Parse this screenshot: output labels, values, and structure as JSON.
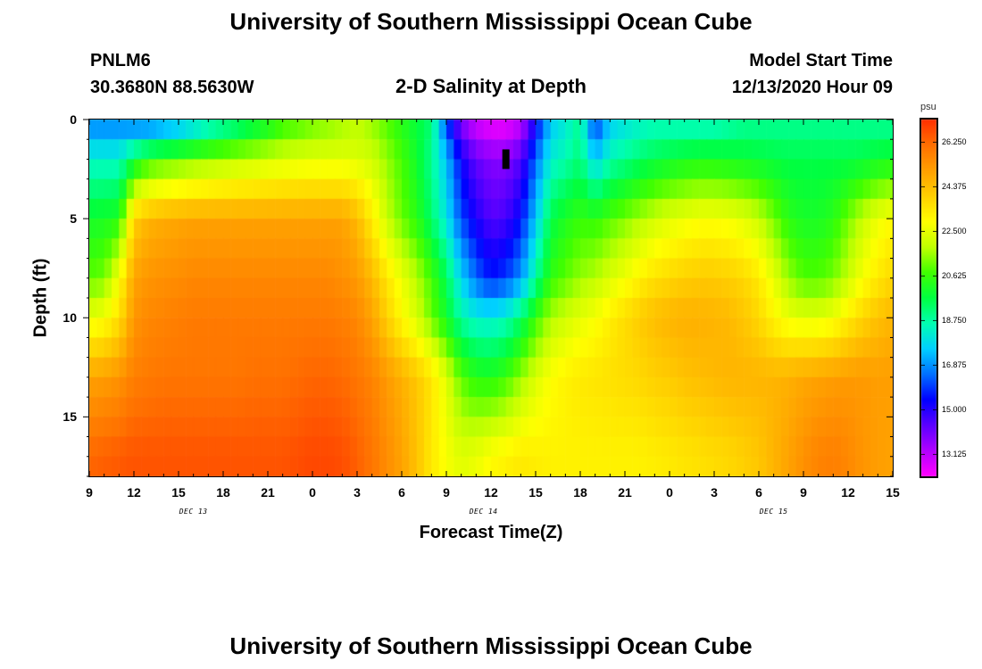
{
  "header": {
    "title": "University of Southern Mississippi Ocean Cube",
    "station": "PNLM6",
    "location": "30.3680N 88.5630W",
    "plot_title": "2-D Salinity at Depth",
    "model_start_label": "Model Start Time",
    "model_start_value": "12/13/2020 Hour 09"
  },
  "footer": {
    "title": "University of Southern Mississippi Ocean Cube"
  },
  "chart_data": {
    "type": "heatmap",
    "title": "2-D Salinity at Depth",
    "xlabel": "Forecast Time(Z)",
    "ylabel": "Depth (ft)",
    "x_ticks": [
      "9",
      "12",
      "15",
      "18",
      "21",
      "0",
      "3",
      "6",
      "9",
      "12",
      "15",
      "18",
      "21",
      "0",
      "3",
      "6",
      "9",
      "12",
      "15"
    ],
    "x_tick_hours": [
      0,
      3,
      6,
      9,
      12,
      15,
      18,
      21,
      24,
      27,
      30,
      33,
      36,
      39,
      42,
      45,
      48,
      51,
      54
    ],
    "x_date_labels": [
      {
        "label": "DEC 13",
        "hour": 7
      },
      {
        "label": "DEC 14",
        "hour": 26.5
      },
      {
        "label": "DEC 15",
        "hour": 46
      }
    ],
    "xlim_hours": [
      0,
      54
    ],
    "y_ticks": [
      0,
      5,
      10,
      15
    ],
    "ylim": [
      0,
      18
    ],
    "y_inverted": true,
    "colorbar": {
      "unit": "psu",
      "ticks": [
        "26.250",
        "24.375",
        "22.500",
        "20.625",
        "18.750",
        "16.875",
        "15.000",
        "13.125"
      ],
      "tick_values": [
        26.25,
        24.375,
        22.5,
        20.625,
        18.75,
        16.875,
        15.0,
        13.125
      ],
      "vmin": 12.2,
      "vmax": 27.2,
      "colors": [
        "#ff00ff",
        "#b000ff",
        "#5a00ff",
        "#0000ff",
        "#0070ff",
        "#00d0ff",
        "#00ffb0",
        "#00ff40",
        "#40ff00",
        "#c0ff00",
        "#ffff00",
        "#ffd000",
        "#ffa000",
        "#ff7000",
        "#ff3000"
      ]
    },
    "values_hourly": {
      "depths_ft": [
        0.4,
        2,
        5,
        8,
        10,
        13,
        17
      ],
      "rows": [
        [
          16.9,
          16.9,
          16.9,
          16.9,
          16.9,
          17.2,
          17.5,
          18.0,
          18.5,
          18.9,
          19.3,
          19.8,
          20.2,
          20.8,
          21.0,
          21.3,
          21.5,
          21.7,
          21.9,
          21.6,
          21.0,
          20.4,
          19.8,
          19.2,
          16.2,
          14.0,
          13.0,
          12.6,
          12.6,
          13.2,
          15.4,
          17.6,
          18.2,
          19.0,
          16.0,
          17.7,
          18.1,
          18.4,
          18.6,
          18.6,
          18.6,
          18.6,
          18.6,
          18.8,
          19.0,
          19.0,
          19.0,
          19.0,
          19.0,
          19.0,
          19.0,
          19.0,
          19.0,
          19.0,
          19.0
        ],
        [
          18.3,
          18.3,
          18.3,
          19.6,
          20.5,
          20.8,
          21.0,
          21.2,
          21.4,
          21.6,
          21.8,
          21.9,
          22.1,
          22.2,
          22.3,
          22.4,
          22.4,
          22.4,
          22.3,
          22.1,
          21.5,
          20.8,
          20.0,
          18.9,
          17.4,
          15.3,
          14.2,
          13.8,
          13.8,
          14.4,
          16.4,
          18.2,
          18.6,
          19.2,
          17.5,
          18.6,
          18.9,
          19.3,
          19.6,
          19.8,
          20.0,
          20.1,
          20.1,
          20.0,
          19.9,
          19.8,
          19.7,
          19.6,
          19.6,
          19.6,
          19.6,
          19.6,
          19.7,
          19.9,
          20.0
        ],
        [
          20.0,
          20.1,
          20.3,
          24.0,
          24.6,
          24.8,
          24.9,
          25.0,
          25.0,
          25.0,
          25.0,
          25.0,
          25.0,
          25.0,
          25.0,
          25.0,
          25.0,
          25.0,
          24.5,
          23.3,
          22.0,
          21.1,
          20.4,
          19.3,
          18.0,
          16.1,
          15.1,
          14.4,
          14.6,
          15.5,
          17.5,
          19.6,
          20.2,
          20.6,
          20.5,
          20.9,
          21.3,
          21.7,
          22.1,
          22.4,
          22.6,
          22.8,
          22.8,
          22.7,
          22.4,
          22.0,
          21.2,
          20.4,
          20.1,
          20.1,
          20.4,
          21.2,
          22.0,
          22.6,
          23.0
        ],
        [
          21.0,
          21.2,
          22.8,
          25.0,
          25.3,
          25.4,
          25.5,
          25.6,
          25.6,
          25.6,
          25.6,
          25.6,
          25.6,
          25.6,
          25.6,
          25.6,
          25.6,
          25.4,
          25.2,
          24.5,
          23.5,
          22.6,
          21.8,
          20.8,
          19.5,
          17.7,
          16.4,
          15.6,
          16.0,
          16.9,
          18.8,
          20.5,
          21.0,
          21.5,
          21.8,
          22.3,
          22.7,
          23.2,
          23.6,
          23.8,
          24.0,
          24.1,
          24.1,
          24.0,
          23.8,
          23.4,
          22.5,
          21.5,
          20.9,
          20.9,
          21.2,
          22.0,
          22.8,
          23.4,
          23.8
        ],
        [
          22.5,
          22.8,
          23.6,
          25.3,
          25.6,
          25.7,
          25.8,
          25.9,
          25.9,
          25.9,
          25.9,
          25.9,
          25.9,
          25.9,
          25.9,
          25.9,
          25.9,
          25.8,
          25.6,
          25.0,
          24.0,
          23.0,
          22.2,
          21.1,
          20.0,
          18.7,
          18.2,
          18.1,
          18.4,
          19.3,
          20.6,
          21.7,
          22.1,
          22.5,
          22.8,
          23.3,
          23.7,
          24.1,
          24.4,
          24.6,
          24.7,
          24.7,
          24.6,
          24.5,
          24.2,
          23.8,
          23.1,
          22.6,
          22.4,
          22.4,
          22.7,
          23.3,
          23.9,
          24.3,
          24.6
        ],
        [
          25.0,
          25.1,
          25.3,
          25.8,
          25.9,
          26.0,
          26.0,
          26.0,
          26.0,
          26.0,
          26.0,
          26.1,
          26.1,
          26.1,
          26.2,
          26.3,
          26.3,
          26.2,
          26.0,
          25.7,
          25.2,
          24.7,
          24.2,
          23.5,
          22.4,
          21.0,
          20.4,
          20.3,
          20.7,
          21.5,
          22.3,
          22.9,
          23.2,
          23.4,
          23.5,
          23.6,
          23.7,
          23.8,
          24.0,
          24.1,
          24.3,
          24.4,
          24.5,
          24.6,
          24.6,
          24.6,
          24.6,
          24.7,
          24.9,
          25.0,
          25.1,
          25.2,
          25.2,
          25.1,
          25.1
        ],
        [
          26.3,
          26.4,
          26.5,
          26.6,
          26.6,
          26.6,
          26.6,
          26.6,
          26.6,
          26.6,
          26.6,
          26.6,
          26.6,
          26.6,
          26.7,
          26.8,
          26.8,
          26.7,
          26.4,
          26.0,
          25.5,
          25.0,
          24.3,
          23.4,
          22.8,
          22.4,
          22.6,
          23.0,
          23.2,
          23.4,
          23.3,
          23.2,
          23.2,
          23.2,
          23.2,
          23.2,
          23.2,
          23.2,
          23.3,
          23.4,
          23.5,
          23.6,
          23.7,
          23.8,
          24.0,
          24.2,
          24.6,
          25.0,
          25.4,
          25.7,
          25.8,
          25.6,
          25.3,
          25.1,
          25.0
        ]
      ]
    },
    "annotations": [
      {
        "type": "marker",
        "shape": "black-rectangle",
        "hour": 28,
        "depth_ft": 2
      }
    ]
  }
}
